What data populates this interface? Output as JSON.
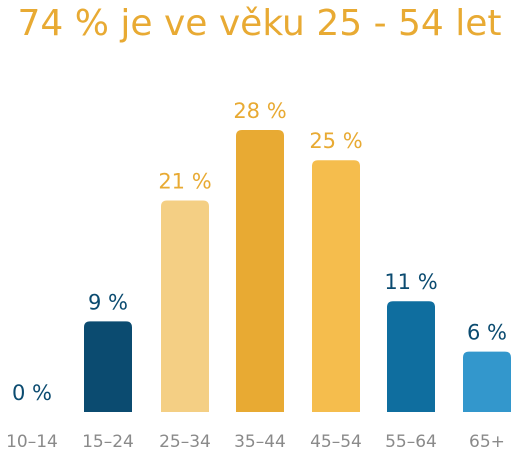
{
  "chart_data": {
    "type": "bar",
    "title": "74 % je ve věku 25 - 54 let",
    "categories": [
      "10–14",
      "15–24",
      "25–34",
      "35–44",
      "45–54",
      "55–64",
      "65+"
    ],
    "values": [
      0,
      9,
      21,
      28,
      25,
      11,
      6
    ],
    "value_labels": [
      "0 %",
      "9 %",
      "21 %",
      "28 %",
      "25 %",
      "11 %",
      "6 %"
    ],
    "bar_colors": [
      "#0b4b70",
      "#0b4b70",
      "#f4cf84",
      "#e8aa33",
      "#f5bd4d",
      "#0f6e9f",
      "#3397cc"
    ],
    "label_colors": [
      "#0b4b70",
      "#0b4b70",
      "#e8aa33",
      "#e8aa33",
      "#e8aa33",
      "#0b4b70",
      "#0b4b70"
    ],
    "ylim": [
      0,
      28
    ],
    "xlabel": "",
    "ylabel": "",
    "grid": false,
    "legend": "none"
  },
  "colors": {
    "title": "#e8aa33",
    "tick_text": "#8a8a8a"
  }
}
